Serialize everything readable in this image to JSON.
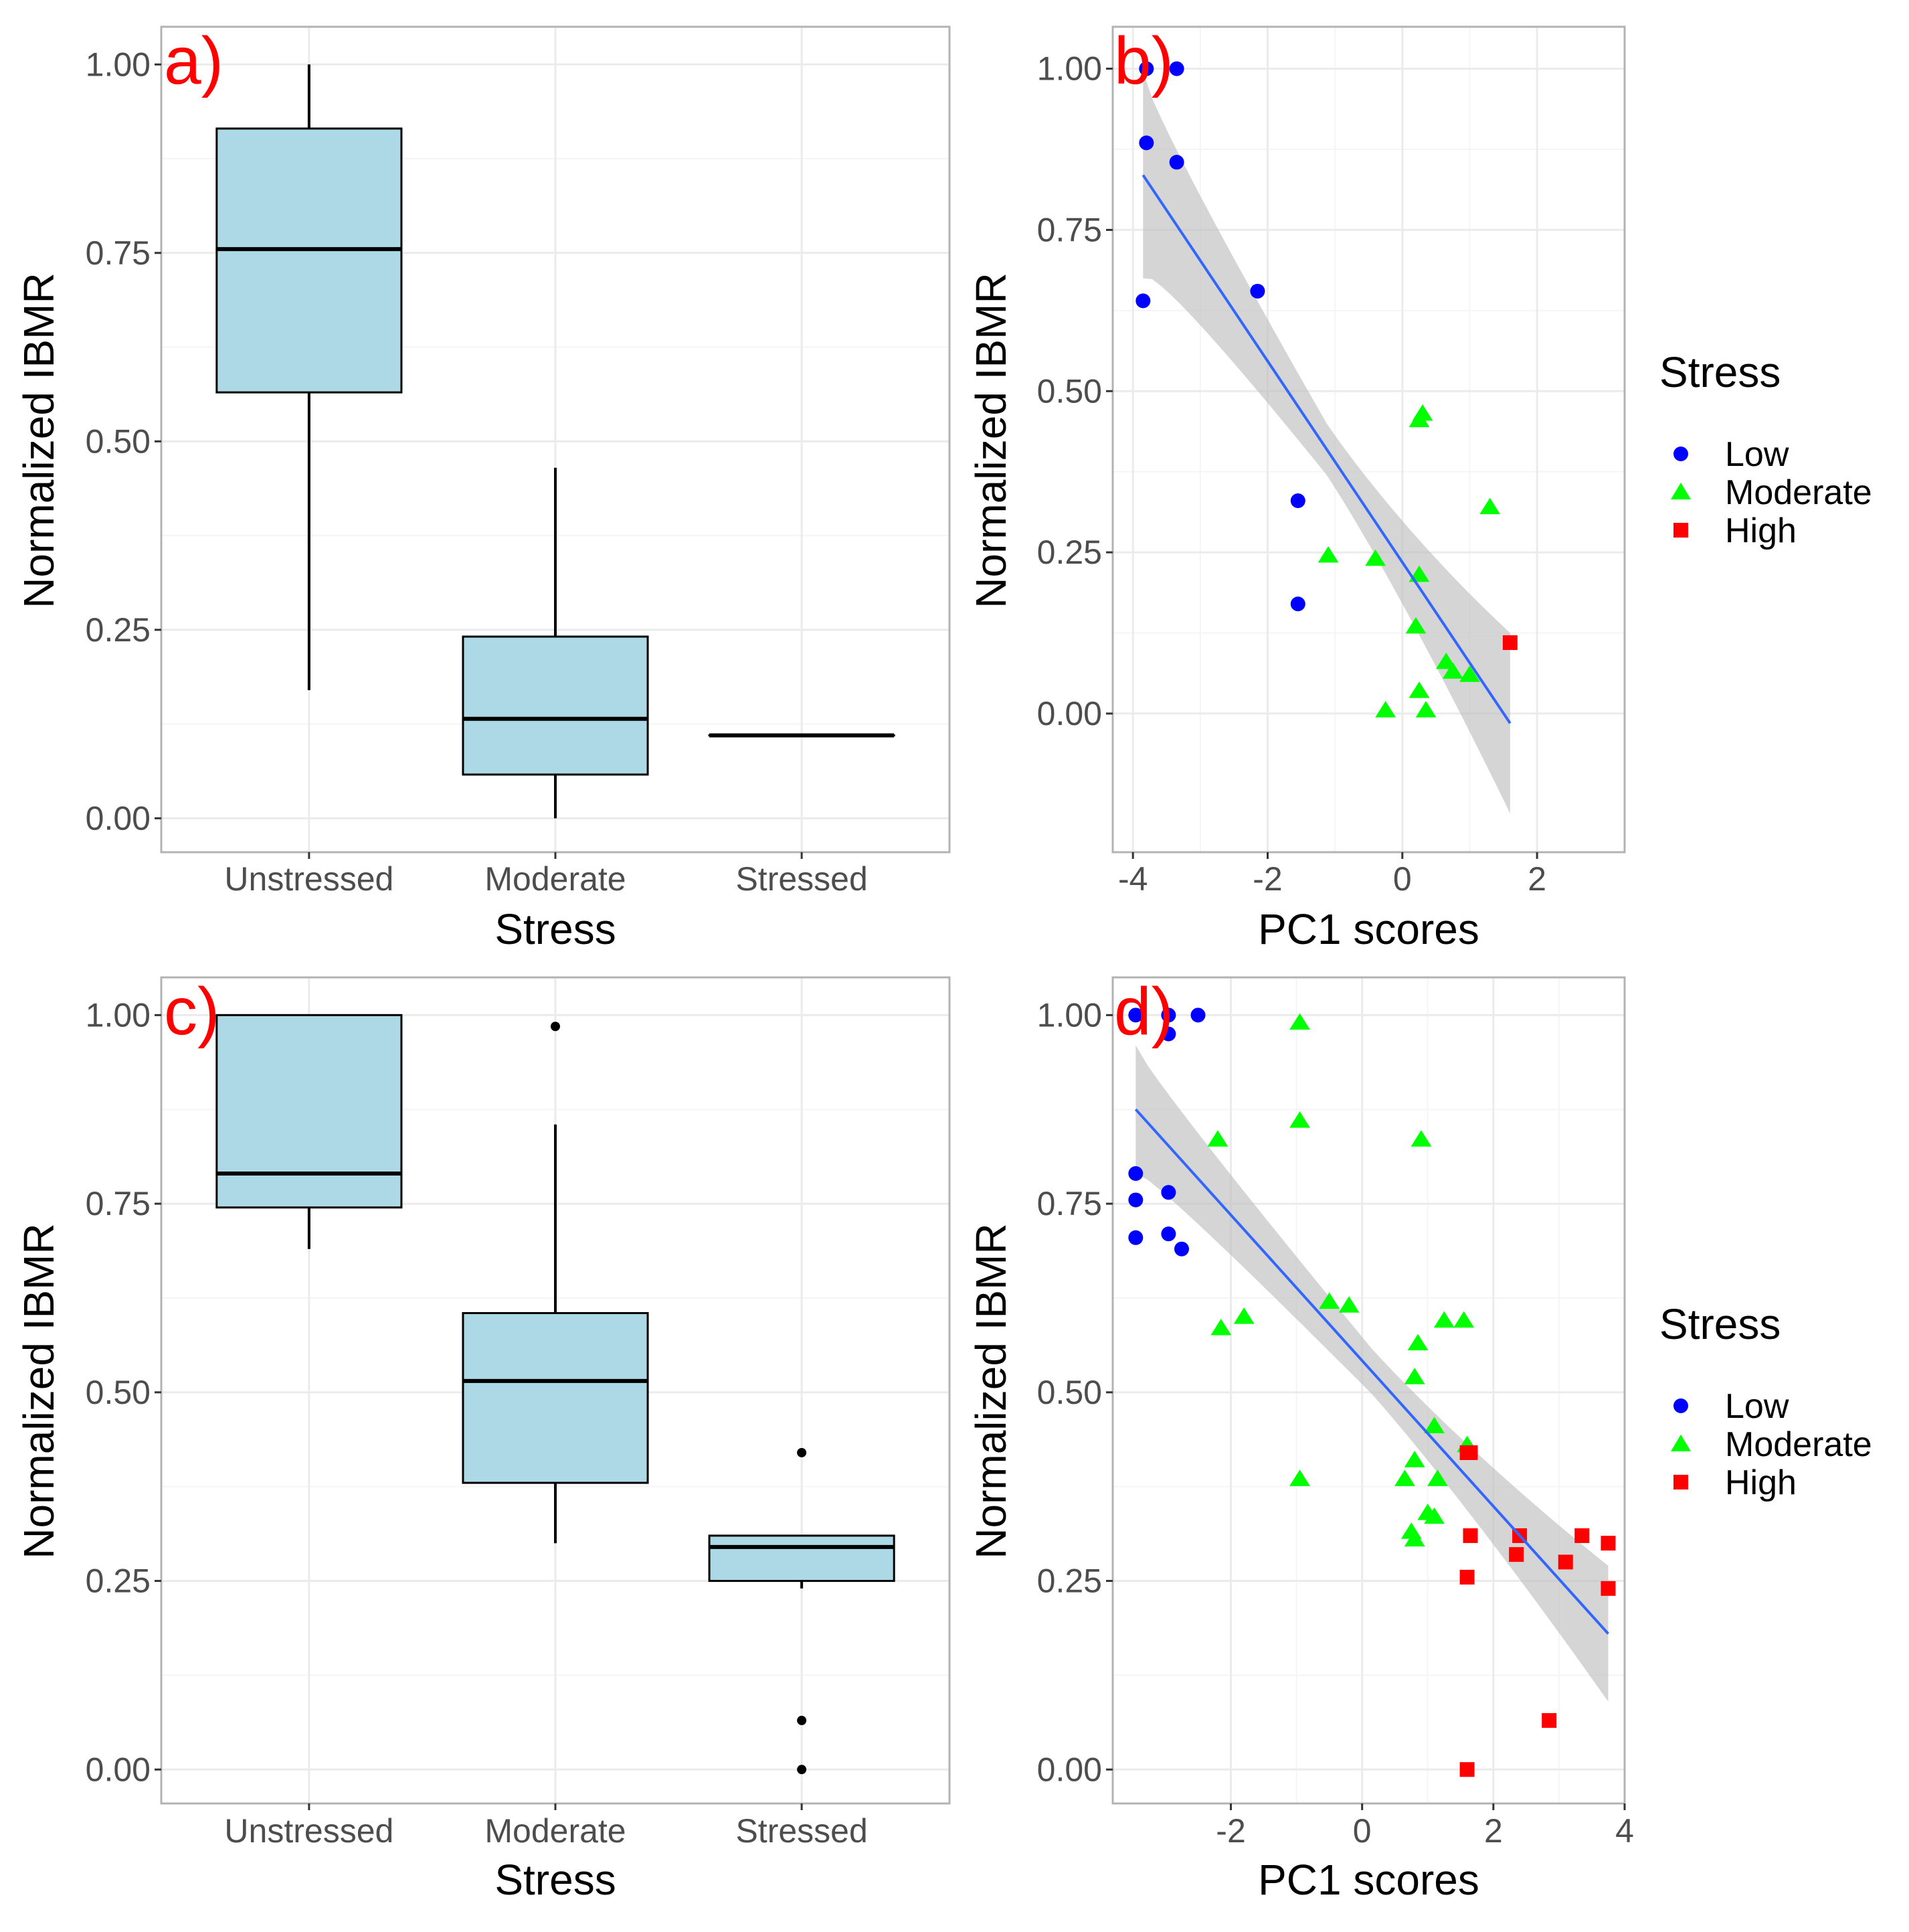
{
  "colors": {
    "low": "#0000ff",
    "moderate": "#00ff00",
    "high": "#ff0000",
    "box_fill": "#add8e6",
    "fit_line": "#3366ff",
    "ci_band": "#bfbfbf",
    "grid_major": "#ebebeb",
    "grid_minor": "#f5f5f5",
    "panel_border": "#b3b3b3"
  },
  "legend": {
    "title": "Stress",
    "labels": [
      "Low",
      "Moderate",
      "High"
    ]
  },
  "chart_data": [
    {
      "id": "a",
      "type": "box",
      "panel_label": "a)",
      "xlabel": "Stress",
      "ylabel": "Normalized IBMR",
      "categories": [
        "Unstressed",
        "Moderate",
        "Stressed"
      ],
      "ylim": [
        -0.045,
        1.05
      ],
      "yticks": [
        0.0,
        0.25,
        0.5,
        0.75,
        1.0
      ],
      "ytick_labels": [
        "0.00",
        "0.25",
        "0.50",
        "0.75",
        "1.00"
      ],
      "boxes": [
        {
          "category": "Unstressed",
          "min": 0.17,
          "q1": 0.565,
          "median": 0.755,
          "q3": 0.915,
          "max": 1.0,
          "outliers": []
        },
        {
          "category": "Moderate",
          "min": 0.0,
          "q1": 0.058,
          "median": 0.132,
          "q3": 0.241,
          "max": 0.465,
          "outliers": []
        },
        {
          "category": "Stressed",
          "min": 0.11,
          "q1": 0.11,
          "median": 0.11,
          "q3": 0.11,
          "max": 0.11,
          "outliers": []
        }
      ]
    },
    {
      "id": "b",
      "type": "scatter",
      "panel_label": "b)",
      "xlabel": "PC1 scores",
      "ylabel": "Normalized IBMR",
      "xlim": [
        -4.3,
        3.3
      ],
      "ylim": [
        -0.215,
        1.065
      ],
      "xticks": [
        -4,
        -2,
        0,
        2
      ],
      "xtick_labels": [
        "-4",
        "-2",
        "0",
        "2"
      ],
      "yticks": [
        0.0,
        0.25,
        0.5,
        0.75,
        1.0
      ],
      "ytick_labels": [
        "0.00",
        "0.25",
        "0.50",
        "0.75",
        "1.00"
      ],
      "fit": {
        "x0": -3.85,
        "y0": 0.835,
        "x1": 1.6,
        "y1": -0.015,
        "ci_half_start": 0.16,
        "ci_half_mid": 0.04,
        "ci_half_end": 0.14
      },
      "series": [
        {
          "name": "Low",
          "marker": "circle",
          "points": [
            [
              -3.8,
              1.0
            ],
            [
              -3.35,
              1.0
            ],
            [
              -3.8,
              0.885
            ],
            [
              -3.35,
              0.855
            ],
            [
              -3.85,
              0.64
            ],
            [
              -2.15,
              0.655
            ],
            [
              -1.55,
              0.33
            ],
            [
              -1.55,
              0.17
            ]
          ]
        },
        {
          "name": "Moderate",
          "marker": "triangle",
          "points": [
            [
              0.3,
              0.465
            ],
            [
              0.25,
              0.455
            ],
            [
              1.3,
              0.32
            ],
            [
              -1.1,
              0.245
            ],
            [
              -0.4,
              0.24
            ],
            [
              0.25,
              0.215
            ],
            [
              0.2,
              0.135
            ],
            [
              0.65,
              0.08
            ],
            [
              0.75,
              0.065
            ],
            [
              1.0,
              0.06
            ],
            [
              0.25,
              0.035
            ],
            [
              -0.25,
              0.005
            ],
            [
              0.35,
              0.005
            ]
          ]
        },
        {
          "name": "High",
          "marker": "square",
          "points": [
            [
              1.6,
              0.11
            ]
          ]
        }
      ]
    },
    {
      "id": "c",
      "type": "box",
      "panel_label": "c)",
      "xlabel": "Stress",
      "ylabel": "Normalized IBMR",
      "categories": [
        "Unstressed",
        "Moderate",
        "Stressed"
      ],
      "ylim": [
        -0.045,
        1.05
      ],
      "yticks": [
        0.0,
        0.25,
        0.5,
        0.75,
        1.0
      ],
      "ytick_labels": [
        "0.00",
        "0.25",
        "0.50",
        "0.75",
        "1.00"
      ],
      "boxes": [
        {
          "category": "Unstressed",
          "min": 0.69,
          "q1": 0.745,
          "median": 0.79,
          "q3": 1.0,
          "max": 1.0,
          "outliers": []
        },
        {
          "category": "Moderate",
          "min": 0.3,
          "q1": 0.38,
          "median": 0.515,
          "q3": 0.605,
          "max": 0.855,
          "outliers": [
            0.985
          ]
        },
        {
          "category": "Stressed",
          "min": 0.24,
          "q1": 0.25,
          "median": 0.295,
          "q3": 0.31,
          "max": 0.31,
          "outliers": [
            0.42,
            0.065,
            0.0
          ]
        }
      ]
    },
    {
      "id": "d",
      "type": "scatter",
      "panel_label": "d)",
      "xlabel": "PC1 scores",
      "ylabel": "Normalized IBMR",
      "xlim": [
        -3.8,
        4.0
      ],
      "ylim": [
        -0.045,
        1.05
      ],
      "xticks": [
        -2,
        0,
        2,
        4
      ],
      "xtick_labels": [
        "-2",
        "0",
        "2",
        "4"
      ],
      "yticks": [
        0.0,
        0.25,
        0.5,
        0.75,
        1.0
      ],
      "ytick_labels": [
        "0.00",
        "0.25",
        "0.50",
        "0.75",
        "1.00"
      ],
      "fit": {
        "x0": -3.45,
        "y0": 0.875,
        "x1": 3.75,
        "y1": 0.18,
        "ci_half_start": 0.085,
        "ci_half_mid": 0.03,
        "ci_half_end": 0.09
      },
      "series": [
        {
          "name": "Low",
          "marker": "circle",
          "points": [
            [
              -3.45,
              1.0
            ],
            [
              -2.95,
              1.0
            ],
            [
              -2.5,
              1.0
            ],
            [
              -2.95,
              0.975
            ],
            [
              -3.45,
              0.79
            ],
            [
              -3.45,
              0.755
            ],
            [
              -2.95,
              0.765
            ],
            [
              -3.45,
              0.705
            ],
            [
              -2.95,
              0.71
            ],
            [
              -2.75,
              0.69
            ]
          ]
        },
        {
          "name": "Moderate",
          "marker": "triangle",
          "points": [
            [
              -0.95,
              0.99
            ],
            [
              -0.95,
              0.86
            ],
            [
              -2.2,
              0.835
            ],
            [
              0.9,
              0.835
            ],
            [
              -2.15,
              0.585
            ],
            [
              -1.8,
              0.6
            ],
            [
              -0.5,
              0.62
            ],
            [
              -0.2,
              0.615
            ],
            [
              0.85,
              0.565
            ],
            [
              1.25,
              0.595
            ],
            [
              1.55,
              0.595
            ],
            [
              0.8,
              0.52
            ],
            [
              1.1,
              0.455
            ],
            [
              1.6,
              0.43
            ],
            [
              0.8,
              0.41
            ],
            [
              0.65,
              0.385
            ],
            [
              1.15,
              0.385
            ],
            [
              -0.95,
              0.385
            ],
            [
              1.0,
              0.34
            ],
            [
              1.1,
              0.335
            ],
            [
              0.75,
              0.315
            ],
            [
              0.8,
              0.305
            ]
          ]
        },
        {
          "name": "High",
          "marker": "square",
          "points": [
            [
              1.65,
              0.42
            ],
            [
              1.6,
              0.42
            ],
            [
              1.65,
              0.31
            ],
            [
              2.4,
              0.31
            ],
            [
              3.35,
              0.31
            ],
            [
              3.75,
              0.3
            ],
            [
              2.35,
              0.285
            ],
            [
              3.1,
              0.275
            ],
            [
              1.6,
              0.255
            ],
            [
              3.75,
              0.24
            ],
            [
              2.85,
              0.065
            ],
            [
              1.6,
              0.0
            ]
          ]
        }
      ]
    }
  ]
}
